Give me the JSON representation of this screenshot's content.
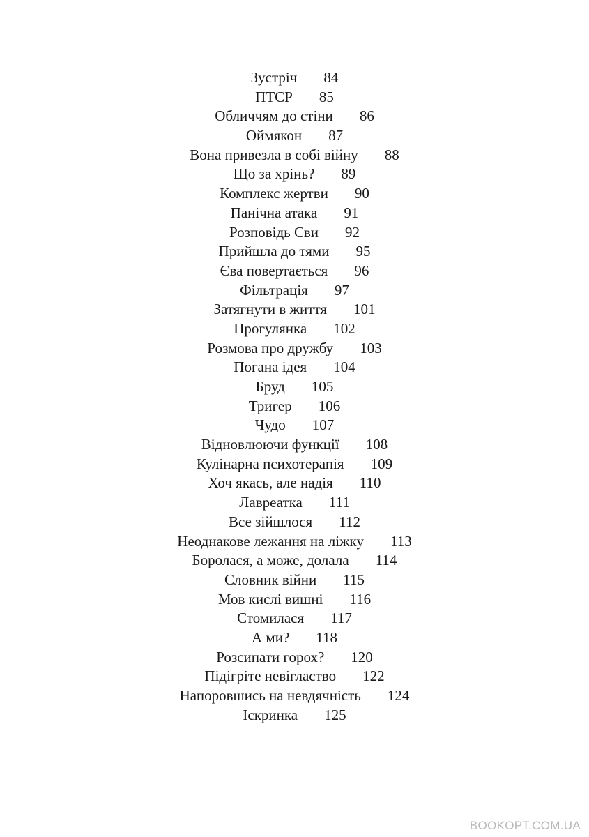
{
  "toc": [
    {
      "title": "Зустріч",
      "page": "84"
    },
    {
      "title": "ПТСР",
      "page": "85"
    },
    {
      "title": "Обличчям до стіни",
      "page": "86"
    },
    {
      "title": "Оймякон",
      "page": "87"
    },
    {
      "title": "Вона привезла в собі війну",
      "page": "88"
    },
    {
      "title": "Що за хрінь?",
      "page": "89"
    },
    {
      "title": "Комплекс жертви",
      "page": "90"
    },
    {
      "title": "Панічна атака",
      "page": "91"
    },
    {
      "title": "Розповідь Єви",
      "page": "92"
    },
    {
      "title": "Прийшла до тями",
      "page": "95"
    },
    {
      "title": "Єва повертається",
      "page": "96"
    },
    {
      "title": "Фільтрація",
      "page": "97"
    },
    {
      "title": "Затягнути в життя",
      "page": "101"
    },
    {
      "title": "Прогулянка",
      "page": "102"
    },
    {
      "title": "Розмова про дружбу",
      "page": "103"
    },
    {
      "title": "Погана ідея",
      "page": "104"
    },
    {
      "title": "Бруд",
      "page": "105"
    },
    {
      "title": "Тригер",
      "page": "106"
    },
    {
      "title": "Чудо",
      "page": "107"
    },
    {
      "title": "Відновлюючи функції",
      "page": "108"
    },
    {
      "title": "Кулінарна психотерапія",
      "page": "109"
    },
    {
      "title": "Хоч якась, але надія",
      "page": "110"
    },
    {
      "title": "Лавреатка",
      "page": "111"
    },
    {
      "title": "Все зійшлося",
      "page": "112"
    },
    {
      "title": "Неоднакове лежання на ліжку",
      "page": "113"
    },
    {
      "title": "Боролася, а може, долала",
      "page": "114"
    },
    {
      "title": "Словник війни",
      "page": "115"
    },
    {
      "title": "Мов кислі вишні",
      "page": "116"
    },
    {
      "title": "Стомилася",
      "page": "117"
    },
    {
      "title": "А ми?",
      "page": "118"
    },
    {
      "title": "Розсипати горох?",
      "page": "120"
    },
    {
      "title": "Підігріте невігластво",
      "page": "122"
    },
    {
      "title": "Напоровшись на невдячність",
      "page": "124"
    },
    {
      "title": "Іскринка",
      "page": "125"
    }
  ],
  "watermark": "BOOKOPT.COM.UA"
}
